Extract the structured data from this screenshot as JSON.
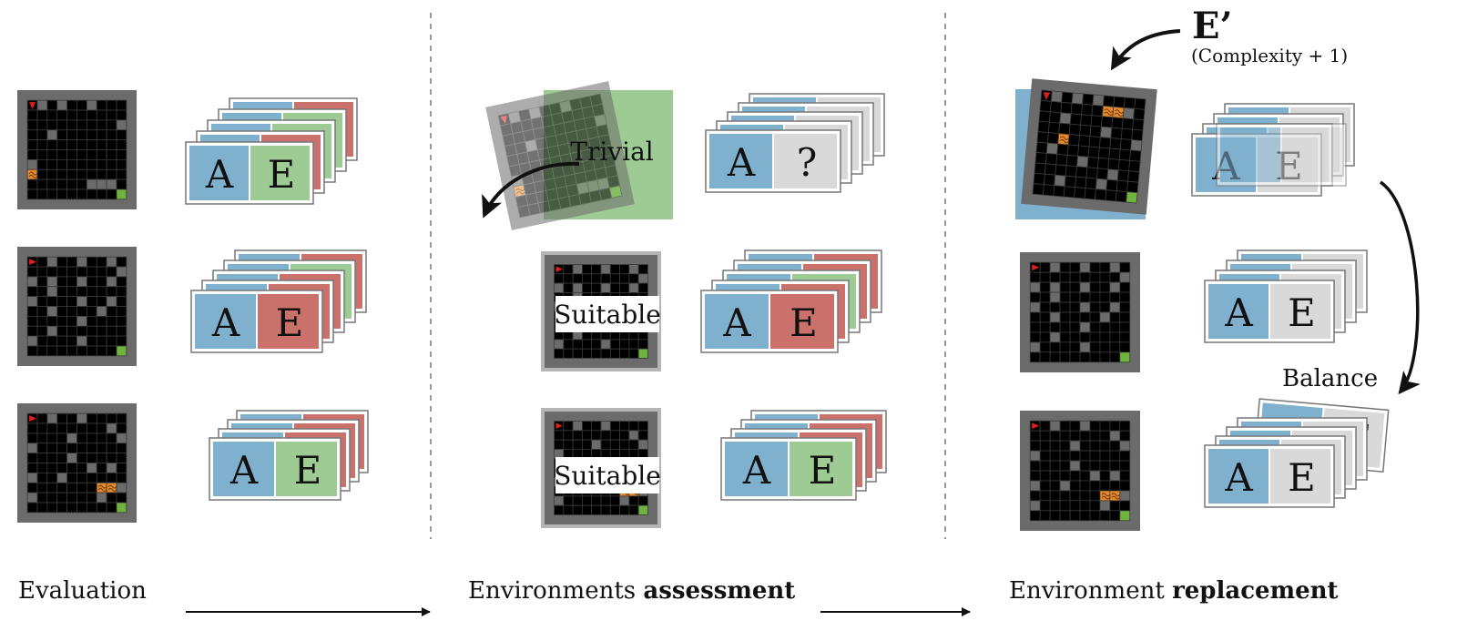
{
  "stages": [
    {
      "text": "Evaluation",
      "bold": ""
    },
    {
      "text": "Environments ",
      "bold": "assessment"
    },
    {
      "text": "Environment ",
      "bold": "replacement"
    }
  ],
  "agent_letter": "A",
  "env_letter": "E",
  "unknown_letter": "?",
  "assessment_labels": {
    "trivial": "Trivial",
    "suitable_1": "Suitable",
    "suitable_2": "Suitable"
  },
  "new_env": {
    "label": "E’",
    "sublabel": "(Complexity + 1)"
  },
  "balance_label": "Balance",
  "colors": {
    "agent": "#7fb1cf",
    "env_easy": "#9ecb93",
    "env_hard": "#c9716a",
    "env_unknown": "#d9d9d9",
    "frame": "#6b6b6b",
    "goal": "#6fb33f",
    "lava": "#e8892a",
    "start": "#e02020",
    "trivial_bg": "#9ecb93",
    "new_env_bg": "#7fb1cf"
  }
}
